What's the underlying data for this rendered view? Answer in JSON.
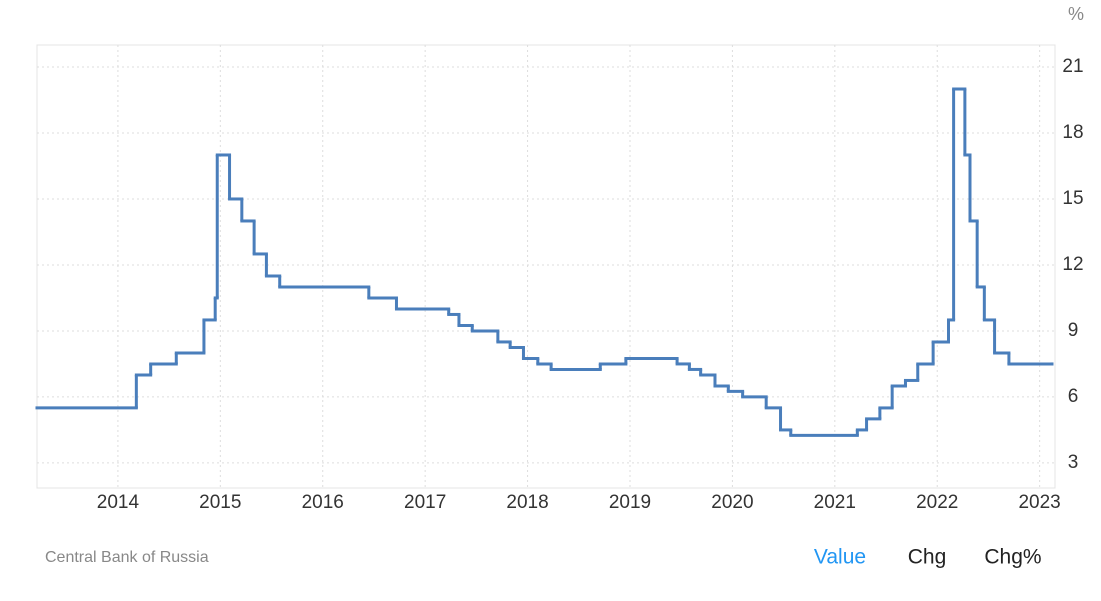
{
  "chart_data": {
    "type": "step-line",
    "unit": "%",
    "source": "Central Bank of Russia",
    "tabs": [
      "Value",
      "Chg",
      "Chg%"
    ],
    "active_tab": "Value",
    "series": [
      {
        "name": "Value",
        "color": "#4a7ebb",
        "x": [
          2013.21,
          2014.18,
          2014.32,
          2014.57,
          2014.84,
          2014.95,
          2014.97,
          2015.09,
          2015.21,
          2015.33,
          2015.45,
          2015.58,
          2016.45,
          2016.72,
          2017.23,
          2017.33,
          2017.46,
          2017.71,
          2017.83,
          2017.96,
          2018.1,
          2018.23,
          2018.71,
          2018.96,
          2019.46,
          2019.58,
          2019.69,
          2019.83,
          2019.96,
          2020.1,
          2020.33,
          2020.47,
          2020.57,
          2021.22,
          2021.31,
          2021.44,
          2021.56,
          2021.69,
          2021.81,
          2021.96,
          2022.11,
          2022.16,
          2022.27,
          2022.32,
          2022.39,
          2022.46,
          2022.56,
          2022.7,
          2023.12
        ],
        "values": [
          5.5,
          7,
          7.5,
          8,
          9.5,
          10.5,
          17,
          15,
          14,
          12.5,
          11.5,
          11,
          10.5,
          10,
          9.75,
          9.25,
          9,
          8.5,
          8.25,
          7.75,
          7.5,
          7.25,
          7.5,
          7.75,
          7.5,
          7.25,
          7,
          6.5,
          6.25,
          6,
          5.5,
          4.5,
          4.25,
          4.5,
          5,
          5.5,
          6.5,
          6.75,
          7.5,
          8.5,
          9.5,
          20,
          17,
          14,
          11,
          9.5,
          8,
          7.5,
          7.5
        ]
      }
    ],
    "xlim": [
      2013.21,
      2023.15
    ],
    "xticks": [
      2014,
      2015,
      2016,
      2017,
      2018,
      2019,
      2020,
      2021,
      2022,
      2023
    ],
    "ylim": [
      1.86,
      22
    ],
    "yticks": [
      3,
      6,
      9,
      12,
      15,
      18,
      21
    ],
    "grid": true
  }
}
